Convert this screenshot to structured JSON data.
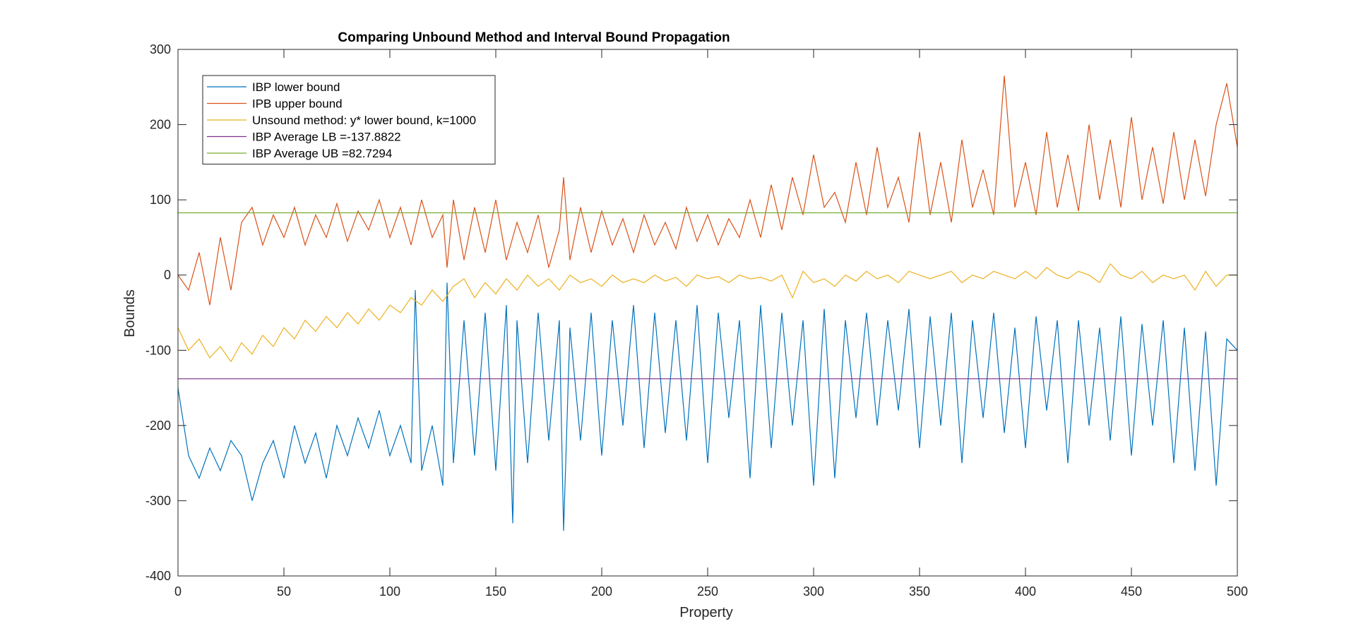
{
  "chart_data": {
    "type": "line",
    "title": "Comparing Unbound Method and Interval Bound Propagation",
    "xlabel": "Property",
    "ylabel": "Bounds",
    "xlim": [
      0,
      500
    ],
    "ylim": [
      -400,
      300
    ],
    "xticks": [
      "0",
      "50",
      "100",
      "150",
      "200",
      "250",
      "300",
      "350",
      "400",
      "450",
      "500"
    ],
    "yticks": [
      "300",
      "200",
      "100",
      "0",
      "-100",
      "-200",
      "-300",
      "-400"
    ],
    "grid": false,
    "legend_position": "top-left",
    "series": [
      {
        "name": "IBP lower bound",
        "color": "#0072BD",
        "x": [
          0,
          5,
          10,
          15,
          20,
          25,
          30,
          35,
          40,
          45,
          50,
          55,
          60,
          65,
          70,
          75,
          80,
          85,
          90,
          95,
          100,
          105,
          110,
          112,
          115,
          120,
          125,
          127,
          130,
          135,
          140,
          145,
          150,
          155,
          158,
          160,
          165,
          170,
          175,
          180,
          182,
          185,
          190,
          195,
          200,
          205,
          210,
          215,
          220,
          225,
          230,
          235,
          240,
          245,
          250,
          255,
          260,
          265,
          270,
          275,
          280,
          285,
          290,
          295,
          300,
          305,
          310,
          315,
          320,
          325,
          330,
          335,
          340,
          345,
          350,
          355,
          360,
          365,
          370,
          375,
          380,
          385,
          390,
          395,
          400,
          405,
          410,
          415,
          420,
          425,
          430,
          435,
          440,
          445,
          450,
          455,
          460,
          465,
          470,
          475,
          480,
          485,
          490,
          495,
          500
        ],
        "values": [
          -150,
          -240,
          -270,
          -230,
          -260,
          -220,
          -240,
          -300,
          -250,
          -220,
          -270,
          -200,
          -250,
          -210,
          -270,
          -200,
          -240,
          -190,
          -230,
          -180,
          -240,
          -200,
          -250,
          -20,
          -260,
          -200,
          -280,
          -10,
          -250,
          -60,
          -240,
          -50,
          -260,
          -40,
          -330,
          -60,
          -250,
          -50,
          -220,
          -60,
          -340,
          -70,
          -220,
          -50,
          -240,
          -60,
          -200,
          -40,
          -230,
          -50,
          -210,
          -60,
          -220,
          -40,
          -250,
          -50,
          -190,
          -60,
          -270,
          -40,
          -230,
          -50,
          -200,
          -60,
          -280,
          -45,
          -270,
          -60,
          -190,
          -50,
          -200,
          -60,
          -180,
          -45,
          -230,
          -55,
          -200,
          -50,
          -250,
          -60,
          -190,
          -50,
          -210,
          -70,
          -230,
          -55,
          -180,
          -60,
          -250,
          -60,
          -200,
          -70,
          -220,
          -55,
          -240,
          -65,
          -200,
          -60,
          -250,
          -70,
          -260,
          -75,
          -280,
          -85,
          -100
        ]
      },
      {
        "name": "IPB upper bound",
        "color": "#D95319",
        "x": [
          0,
          5,
          10,
          15,
          20,
          25,
          30,
          35,
          40,
          45,
          50,
          55,
          60,
          65,
          70,
          75,
          80,
          85,
          90,
          95,
          100,
          105,
          110,
          115,
          120,
          125,
          127,
          130,
          135,
          140,
          145,
          150,
          155,
          160,
          165,
          170,
          175,
          180,
          182,
          185,
          190,
          195,
          200,
          205,
          210,
          215,
          220,
          225,
          230,
          235,
          240,
          245,
          250,
          255,
          260,
          265,
          270,
          275,
          280,
          285,
          290,
          295,
          300,
          305,
          310,
          315,
          320,
          325,
          330,
          335,
          340,
          345,
          350,
          355,
          360,
          365,
          370,
          375,
          380,
          385,
          390,
          395,
          400,
          405,
          410,
          415,
          420,
          425,
          430,
          435,
          440,
          445,
          450,
          455,
          460,
          465,
          470,
          475,
          480,
          485,
          490,
          495,
          500
        ],
        "values": [
          0,
          -20,
          30,
          -40,
          50,
          -20,
          70,
          90,
          40,
          80,
          50,
          90,
          40,
          80,
          50,
          95,
          45,
          85,
          60,
          100,
          50,
          90,
          40,
          100,
          50,
          80,
          10,
          100,
          20,
          90,
          30,
          100,
          20,
          70,
          30,
          80,
          10,
          60,
          130,
          20,
          90,
          30,
          85,
          40,
          75,
          30,
          80,
          40,
          70,
          35,
          90,
          45,
          80,
          40,
          75,
          50,
          100,
          50,
          120,
          60,
          130,
          80,
          160,
          90,
          110,
          70,
          150,
          80,
          170,
          90,
          130,
          70,
          190,
          80,
          150,
          70,
          180,
          90,
          140,
          80,
          265,
          90,
          150,
          80,
          190,
          90,
          160,
          85,
          200,
          100,
          180,
          90,
          210,
          100,
          170,
          95,
          190,
          100,
          180,
          105,
          200,
          255,
          170
        ]
      },
      {
        "name": "Unsound method: y* lower bound, k=1000",
        "color": "#EDB120",
        "x": [
          0,
          5,
          10,
          15,
          20,
          25,
          30,
          35,
          40,
          45,
          50,
          55,
          60,
          65,
          70,
          75,
          80,
          85,
          90,
          95,
          100,
          105,
          110,
          115,
          120,
          125,
          130,
          135,
          140,
          145,
          150,
          155,
          160,
          165,
          170,
          175,
          180,
          185,
          190,
          195,
          200,
          205,
          210,
          215,
          220,
          225,
          230,
          235,
          240,
          245,
          250,
          255,
          260,
          265,
          270,
          275,
          280,
          285,
          290,
          295,
          300,
          305,
          310,
          315,
          320,
          325,
          330,
          335,
          340,
          345,
          350,
          355,
          360,
          365,
          370,
          375,
          380,
          385,
          390,
          395,
          400,
          405,
          410,
          415,
          420,
          425,
          430,
          435,
          440,
          445,
          450,
          455,
          460,
          465,
          470,
          475,
          480,
          485,
          490,
          495,
          500
        ],
        "values": [
          -70,
          -100,
          -85,
          -110,
          -95,
          -115,
          -90,
          -105,
          -80,
          -95,
          -70,
          -85,
          -60,
          -75,
          -55,
          -70,
          -50,
          -65,
          -45,
          -60,
          -40,
          -50,
          -30,
          -40,
          -20,
          -35,
          -15,
          -5,
          -30,
          -10,
          -25,
          -5,
          -20,
          0,
          -15,
          -5,
          -20,
          0,
          -10,
          -5,
          -15,
          0,
          -10,
          -5,
          -10,
          0,
          -8,
          -3,
          -15,
          0,
          -5,
          -2,
          -10,
          0,
          -5,
          -3,
          -8,
          0,
          -30,
          5,
          -10,
          -5,
          -15,
          0,
          -8,
          5,
          -5,
          0,
          -10,
          5,
          0,
          -5,
          0,
          5,
          -10,
          0,
          -5,
          5,
          0,
          -5,
          5,
          -5,
          10,
          0,
          -5,
          5,
          0,
          -10,
          15,
          0,
          -5,
          5,
          -10,
          0,
          -5,
          0,
          -20,
          5,
          -15,
          0,
          0
        ]
      },
      {
        "name": "IBP Average LB =-137.8822",
        "color": "#7E2F8E",
        "x": [
          0,
          500
        ],
        "values": [
          -137.8822,
          -137.8822
        ]
      },
      {
        "name": "IBP Average UB =82.7294",
        "color": "#77AC30",
        "x": [
          0,
          500
        ],
        "values": [
          82.7294,
          82.7294
        ]
      }
    ]
  }
}
